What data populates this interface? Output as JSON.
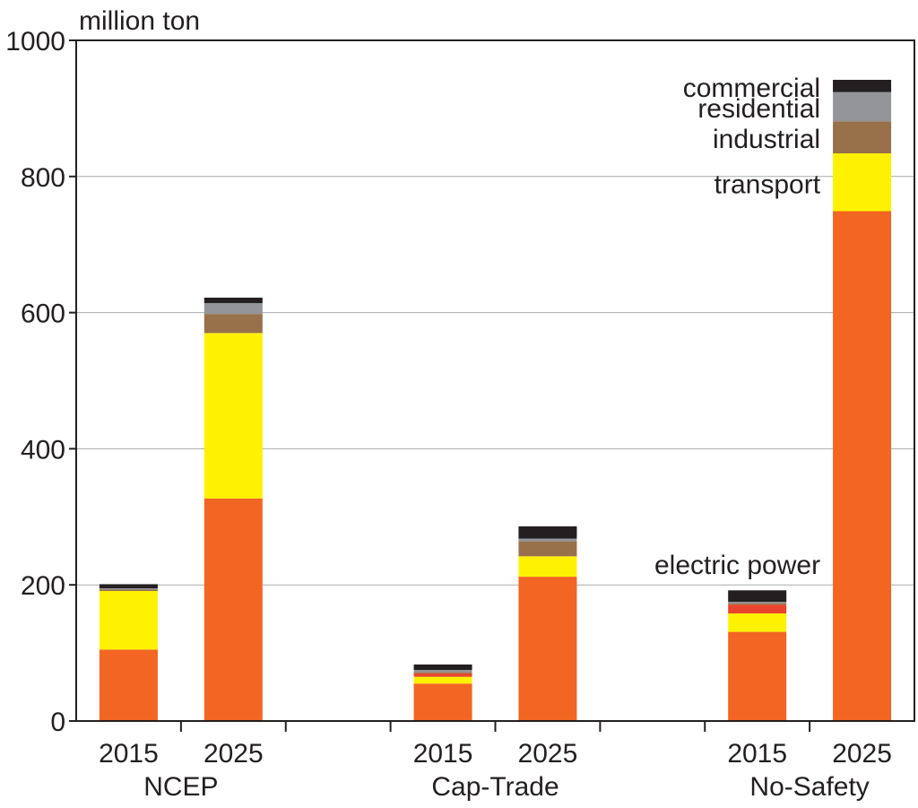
{
  "chart_data": {
    "type": "bar",
    "stacked": true,
    "unit_label": "million ton",
    "ylim": [
      0,
      1000
    ],
    "yticks": [
      "0",
      "200",
      "400",
      "600",
      "800",
      "1000"
    ],
    "grid": true,
    "categories": [
      {
        "year": "2015",
        "group": "NCEP"
      },
      {
        "year": "2025",
        "group": "NCEP"
      },
      {
        "year": "2015",
        "group": "Cap-Trade"
      },
      {
        "year": "2025",
        "group": "Cap-Trade"
      },
      {
        "year": "2015",
        "group": "No-Safety"
      },
      {
        "year": "2025",
        "group": "No-Safety"
      }
    ],
    "groups": [
      "NCEP",
      "Cap-Trade",
      "No-Safety"
    ],
    "series": [
      {
        "name": "electric power",
        "color": "#f26522",
        "values": [
          105,
          327,
          55,
          212,
          131,
          749
        ]
      },
      {
        "name": "transport",
        "color": "#fff200",
        "values": [
          86,
          243,
          10,
          30,
          27,
          85
        ]
      },
      {
        "name": "",
        "color": "#e8452c",
        "values": [
          0,
          0,
          5,
          0,
          13,
          0
        ]
      },
      {
        "name": "industrial",
        "color": "#98704a",
        "values": [
          2,
          28,
          2,
          22,
          2,
          47
        ]
      },
      {
        "name": "residential",
        "color": "#939598",
        "values": [
          2,
          16,
          3,
          4,
          2,
          43
        ]
      },
      {
        "name": "commercial",
        "color": "#231f20",
        "values": [
          6,
          8,
          8,
          18,
          17,
          18
        ]
      }
    ],
    "legend_placement": "right of last bar"
  }
}
